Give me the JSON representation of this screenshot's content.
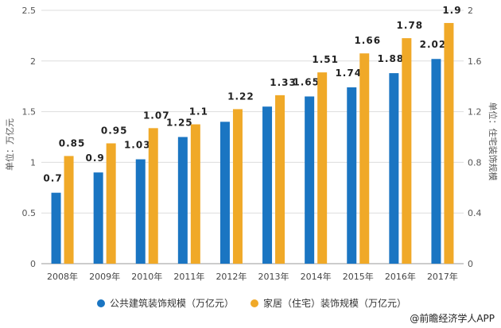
{
  "chart_data": {
    "type": "bar",
    "categories": [
      "2008年",
      "2009年",
      "2010年",
      "2011年",
      "2012年",
      "2013年",
      "2014年",
      "2015年",
      "2016年",
      "2017年"
    ],
    "series": [
      {
        "name": "公共建筑装饰规模（万亿元）",
        "axis": "left",
        "color": "#1a75c2",
        "values": [
          0.7,
          0.9,
          1.03,
          1.25,
          1.4,
          1.55,
          1.65,
          1.74,
          1.88,
          2.02
        ],
        "labels": [
          "0.7",
          "0.9",
          "1.03",
          "1.25",
          "",
          "",
          "1.65",
          "1.74",
          "1.88",
          "2.02"
        ]
      },
      {
        "name": "家居（住宅）装饰规模（万亿元）",
        "axis": "right",
        "color": "#f0a928",
        "values": [
          0.85,
          0.95,
          1.07,
          1.1,
          1.22,
          1.33,
          1.51,
          1.66,
          1.78,
          1.9
        ],
        "labels": [
          "0.85",
          "0.95",
          "1.07",
          "1.1",
          "1.22",
          "1.33",
          "1.51",
          "1.66",
          "1.78",
          "1.9"
        ]
      }
    ],
    "ylabel_left": "单位：万亿元",
    "ylabel_right": "单位：住宅装饰规模",
    "ylim_left": [
      0,
      2.5
    ],
    "yticks_left": [
      "0",
      "0.5",
      "1",
      "1.5",
      "2",
      "2.5"
    ],
    "ylim_right": [
      0,
      2
    ],
    "yticks_right": [
      "0",
      "0.4",
      "0.8",
      "1.2",
      "1.6",
      "2"
    ],
    "grid": true,
    "legend": "bottom"
  },
  "footer": "@前瞻经济学人APP"
}
